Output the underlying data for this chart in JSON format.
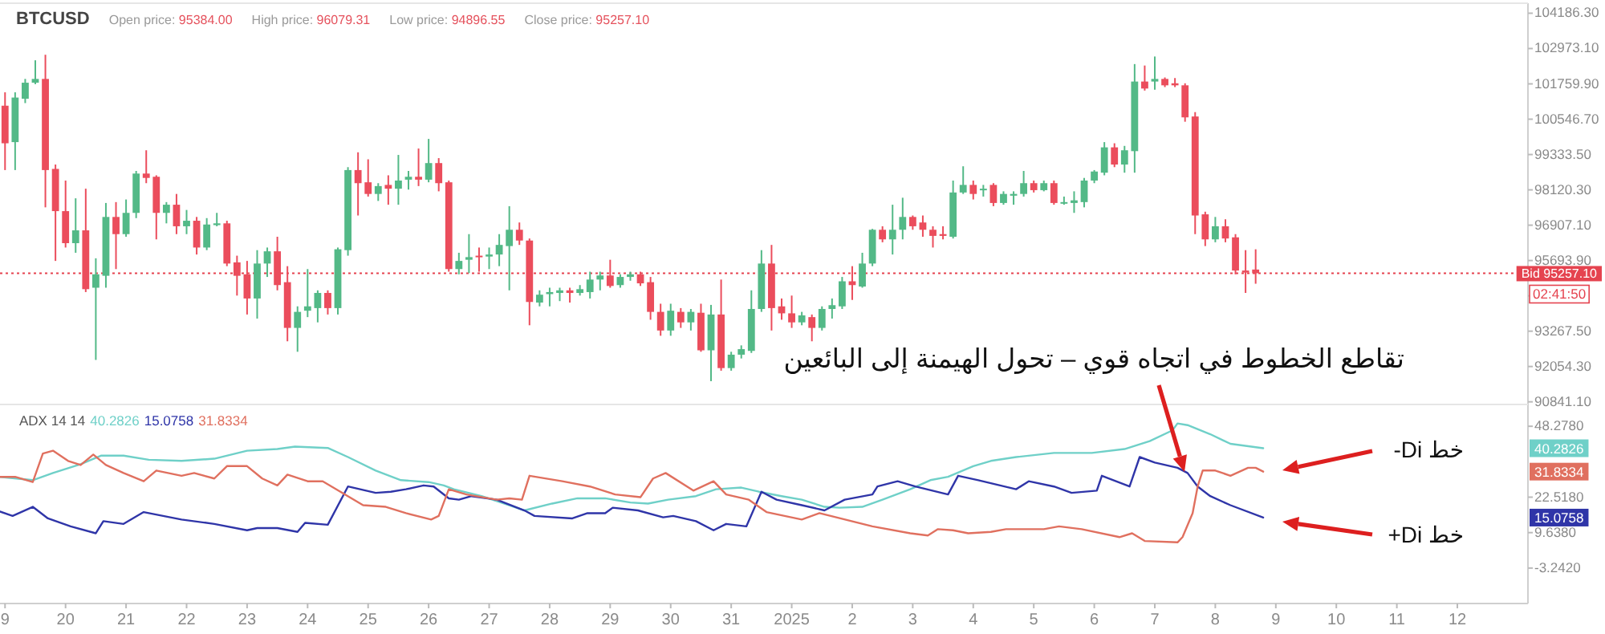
{
  "chart_data": [
    {
      "type": "candlestick",
      "title": "BTCUSD",
      "annotations": [
        "Open price: 95384.00",
        "High price: 96079.31",
        "Low price: 94896.55",
        "Close price: 95257.10",
        "02:41:50"
      ],
      "x": [
        "2024-12-19T00:00",
        "2024-12-19T04:00",
        "2024-12-19T08:00",
        "2024-12-19T12:00",
        "2024-12-19T16:00",
        "2024-12-19T20:00",
        "2024-12-20T00:00",
        "2024-12-20T04:00",
        "2024-12-20T08:00",
        "2024-12-20T12:00",
        "2024-12-20T16:00",
        "2024-12-20T20:00",
        "2024-12-21T00:00",
        "2024-12-21T04:00",
        "2024-12-21T08:00",
        "2024-12-21T12:00",
        "2024-12-21T16:00",
        "2024-12-21T20:00",
        "2024-12-22T00:00",
        "2024-12-22T04:00",
        "2024-12-22T08:00",
        "2024-12-22T12:00",
        "2024-12-22T16:00",
        "2024-12-22T20:00",
        "2024-12-23T00:00",
        "2024-12-23T04:00",
        "2024-12-23T08:00",
        "2024-12-23T12:00",
        "2024-12-23T16:00",
        "2024-12-23T20:00",
        "2024-12-24T00:00",
        "2024-12-24T04:00",
        "2024-12-24T08:00",
        "2024-12-24T12:00",
        "2024-12-24T16:00",
        "2024-12-24T20:00",
        "2024-12-25T00:00",
        "2024-12-25T04:00",
        "2024-12-25T08:00",
        "2024-12-25T12:00",
        "2024-12-25T16:00",
        "2024-12-25T20:00",
        "2024-12-26T00:00",
        "2024-12-26T04:00",
        "2024-12-26T08:00",
        "2024-12-26T12:00",
        "2024-12-26T16:00",
        "2024-12-26T20:00",
        "2024-12-27T00:00",
        "2024-12-27T04:00",
        "2024-12-27T08:00",
        "2024-12-27T12:00",
        "2024-12-27T16:00",
        "2024-12-27T20:00",
        "2024-12-28T00:00",
        "2024-12-28T04:00",
        "2024-12-28T08:00",
        "2024-12-28T12:00",
        "2024-12-28T16:00",
        "2024-12-28T20:00",
        "2024-12-29T00:00",
        "2024-12-29T04:00",
        "2024-12-29T08:00",
        "2024-12-29T12:00",
        "2024-12-29T16:00",
        "2024-12-29T20:00",
        "2024-12-30T00:00",
        "2024-12-30T04:00",
        "2024-12-30T08:00",
        "2024-12-30T12:00",
        "2024-12-30T16:00",
        "2024-12-30T20:00",
        "2024-12-31T00:00",
        "2024-12-31T04:00",
        "2024-12-31T08:00",
        "2024-12-31T12:00",
        "2024-12-31T16:00",
        "2024-12-31T20:00",
        "2025-01-01T00:00",
        "2025-01-01T04:00",
        "2025-01-01T08:00",
        "2025-01-01T12:00",
        "2025-01-01T16:00",
        "2025-01-01T20:00",
        "2025-01-02T00:00",
        "2025-01-02T04:00",
        "2025-01-02T08:00",
        "2025-01-02T12:00",
        "2025-01-02T16:00",
        "2025-01-02T20:00",
        "2025-01-03T00:00",
        "2025-01-03T04:00",
        "2025-01-03T08:00",
        "2025-01-03T12:00",
        "2025-01-03T16:00",
        "2025-01-03T20:00",
        "2025-01-04T00:00",
        "2025-01-04T04:00",
        "2025-01-04T08:00",
        "2025-01-04T12:00",
        "2025-01-04T16:00",
        "2025-01-04T20:00",
        "2025-01-05T00:00",
        "2025-01-05T04:00",
        "2025-01-05T08:00",
        "2025-01-05T12:00",
        "2025-01-05T16:00",
        "2025-01-05T20:00",
        "2025-01-06T00:00",
        "2025-01-06T04:00",
        "2025-01-06T08:00",
        "2025-01-06T12:00",
        "2025-01-06T16:00",
        "2025-01-06T20:00",
        "2025-01-07T00:00",
        "2025-01-07T04:00",
        "2025-01-07T08:00",
        "2025-01-07T12:00",
        "2025-01-07T16:00",
        "2025-01-07T20:00",
        "2025-01-08T00:00",
        "2025-01-08T04:00",
        "2025-01-08T08:00",
        "2025-01-08T12:00",
        "2025-01-08T16:00"
      ],
      "ohlc": [
        [
          101010,
          101470,
          98800,
          99720
        ],
        [
          99760,
          101470,
          98800,
          101290
        ],
        [
          101250,
          101930,
          101100,
          101800
        ],
        [
          101800,
          102570,
          101750,
          101930
        ],
        [
          101930,
          102760,
          97520,
          98800
        ],
        [
          98840,
          98990,
          95680,
          97390
        ],
        [
          97390,
          98440,
          96140,
          96290
        ],
        [
          96290,
          97830,
          95960,
          96730
        ],
        [
          96730,
          98160,
          94610,
          94710
        ],
        [
          94760,
          95770,
          92280,
          95220
        ],
        [
          95170,
          97670,
          94760,
          97190
        ],
        [
          97190,
          97700,
          95400,
          96600
        ],
        [
          96600,
          97790,
          96510,
          97330
        ],
        [
          97330,
          98770,
          97150,
          98680
        ],
        [
          98680,
          99480,
          98350,
          98530
        ],
        [
          98570,
          98620,
          96420,
          97330
        ],
        [
          97330,
          97700,
          96970,
          97610
        ],
        [
          97610,
          97980,
          96600,
          96870
        ],
        [
          96870,
          97430,
          96600,
          97060
        ],
        [
          97060,
          97190,
          95900,
          96140
        ],
        [
          96140,
          97150,
          96050,
          96930
        ],
        [
          96910,
          97330,
          96870,
          96970
        ],
        [
          96970,
          97060,
          95500,
          95590
        ],
        [
          95630,
          95860,
          94490,
          95170
        ],
        [
          95220,
          95680,
          93840,
          94390
        ],
        [
          94390,
          96050,
          93700,
          95590
        ],
        [
          95590,
          96140,
          95130,
          96010
        ],
        [
          96010,
          96510,
          94670,
          94850
        ],
        [
          94950,
          95500,
          92920,
          93380
        ],
        [
          93380,
          94120,
          92560,
          93930
        ],
        [
          93970,
          95400,
          93750,
          94120
        ],
        [
          94060,
          94670,
          93570,
          94580
        ],
        [
          94580,
          94670,
          93840,
          94060
        ],
        [
          94060,
          96140,
          93840,
          96080
        ],
        [
          96050,
          98900,
          95860,
          98800
        ],
        [
          98800,
          99410,
          97240,
          98350
        ],
        [
          98380,
          99170,
          97890,
          97980
        ],
        [
          97980,
          98350,
          97740,
          98250
        ],
        [
          98290,
          98620,
          97610,
          98160
        ],
        [
          98160,
          99320,
          97610,
          98440
        ],
        [
          98470,
          98770,
          98130,
          98570
        ],
        [
          98570,
          99540,
          98250,
          98470
        ],
        [
          98470,
          99870,
          98380,
          99040
        ],
        [
          99040,
          99210,
          98070,
          98350
        ],
        [
          98380,
          98440,
          95310,
          95400
        ],
        [
          95400,
          95960,
          95220,
          95680
        ],
        [
          95720,
          96600,
          95260,
          95810
        ],
        [
          95860,
          96140,
          95310,
          95810
        ],
        [
          95830,
          96140,
          95400,
          95900
        ],
        [
          95900,
          96600,
          95500,
          96230
        ],
        [
          96190,
          97560,
          94670,
          96750
        ],
        [
          96750,
          97000,
          96230,
          96380
        ],
        [
          96380,
          96450,
          93470,
          94270
        ],
        [
          94250,
          94670,
          94120,
          94520
        ],
        [
          94540,
          94760,
          94120,
          94610
        ],
        [
          94580,
          94760,
          94300,
          94670
        ],
        [
          94670,
          94760,
          94250,
          94580
        ],
        [
          94580,
          94850,
          94490,
          94710
        ],
        [
          94610,
          95310,
          94390,
          95040
        ],
        [
          95040,
          95310,
          94670,
          95180
        ],
        [
          95180,
          95720,
          94760,
          94820
        ],
        [
          94850,
          95220,
          94760,
          95130
        ],
        [
          95130,
          95310,
          95000,
          95220
        ],
        [
          95220,
          95310,
          94820,
          94910
        ],
        [
          94950,
          95130,
          93660,
          93930
        ],
        [
          93930,
          94210,
          93110,
          93290
        ],
        [
          93290,
          94210,
          93110,
          93970
        ],
        [
          93930,
          94060,
          93380,
          93570
        ],
        [
          93570,
          94030,
          93290,
          93930
        ],
        [
          93900,
          94210,
          92560,
          92610
        ],
        [
          92610,
          94170,
          91550,
          93840
        ],
        [
          93840,
          95040,
          91910,
          92000
        ],
        [
          92000,
          92560,
          91910,
          92460
        ],
        [
          92460,
          92780,
          92330,
          92650
        ],
        [
          92590,
          94670,
          92520,
          94030
        ],
        [
          94030,
          96050,
          93930,
          95590
        ],
        [
          95590,
          96230,
          93290,
          94060
        ],
        [
          94120,
          94390,
          93660,
          93880
        ],
        [
          93880,
          94490,
          93380,
          93570
        ],
        [
          93570,
          93930,
          93470,
          93810
        ],
        [
          93750,
          93840,
          92920,
          93380
        ],
        [
          93380,
          94120,
          93290,
          94030
        ],
        [
          94030,
          94390,
          93700,
          94160
        ],
        [
          94120,
          95130,
          94030,
          94980
        ],
        [
          94980,
          95500,
          94340,
          94850
        ],
        [
          94800,
          95960,
          94760,
          95590
        ],
        [
          95590,
          96780,
          95500,
          96750
        ],
        [
          96750,
          96870,
          96320,
          96420
        ],
        [
          96420,
          97610,
          95900,
          96750
        ],
        [
          96750,
          97850,
          96420,
          97190
        ],
        [
          97190,
          97240,
          96750,
          96870
        ],
        [
          97000,
          97240,
          96510,
          96750
        ],
        [
          96750,
          96870,
          96140,
          96540
        ],
        [
          96600,
          96870,
          96420,
          96540
        ],
        [
          96510,
          98440,
          96450,
          98030
        ],
        [
          98030,
          98930,
          97980,
          98290
        ],
        [
          98290,
          98440,
          97790,
          97980
        ],
        [
          98110,
          98290,
          97890,
          98160
        ],
        [
          98290,
          98350,
          97560,
          97670
        ],
        [
          97670,
          98070,
          97610,
          97980
        ],
        [
          97920,
          98070,
          97610,
          97980
        ],
        [
          97980,
          98770,
          97890,
          98350
        ],
        [
          98350,
          98440,
          98030,
          98110
        ],
        [
          98110,
          98440,
          98070,
          98350
        ],
        [
          98350,
          98440,
          97610,
          97670
        ],
        [
          97670,
          97890,
          97610,
          97700
        ],
        [
          97670,
          98070,
          97330,
          97760
        ],
        [
          97700,
          98530,
          97520,
          98440
        ],
        [
          98440,
          98800,
          98350,
          98750
        ],
        [
          98710,
          99760,
          98620,
          99580
        ],
        [
          99580,
          99720,
          98900,
          98990
        ],
        [
          98990,
          99630,
          98710,
          99480
        ],
        [
          99450,
          102440,
          98710,
          101840
        ],
        [
          101840,
          102390,
          101530,
          101600
        ],
        [
          101840,
          102700,
          101560,
          101930
        ],
        [
          101930,
          101980,
          101650,
          101710
        ],
        [
          101780,
          101960,
          101650,
          101710
        ],
        [
          101710,
          101780,
          100460,
          100610
        ],
        [
          100640,
          100790,
          96600,
          97240
        ],
        [
          97280,
          97370,
          96190,
          96420
        ],
        [
          96420,
          97190,
          96320,
          96870
        ],
        [
          96870,
          97110,
          96320,
          96450
        ],
        [
          96490,
          96600,
          95220,
          95350
        ],
        [
          95350,
          96050,
          94580,
          95280
        ],
        [
          95384,
          96079.31,
          94896.55,
          95257.1
        ]
      ],
      "colors": [
        "#eb4d5c",
        "#53b987",
        "#53b987",
        "#53b987",
        "#eb4d5c",
        "#eb4d5c",
        "#eb4d5c",
        "#53b987",
        "#eb4d5c",
        "#53b987",
        "#53b987",
        "#eb4d5c",
        "#53b987",
        "#53b987",
        "#eb4d5c",
        "#eb4d5c",
        "#53b987",
        "#eb4d5c",
        "#53b987",
        "#eb4d5c",
        "#53b987",
        "#53b987",
        "#eb4d5c",
        "#eb4d5c",
        "#eb4d5c",
        "#53b987",
        "#53b987",
        "#eb4d5c",
        "#eb4d5c",
        "#53b987",
        "#53b987",
        "#53b987",
        "#eb4d5c",
        "#53b987",
        "#53b987",
        "#eb4d5c",
        "#eb4d5c",
        "#53b987",
        "#eb4d5c",
        "#53b987",
        "#53b987",
        "#eb4d5c",
        "#53b987",
        "#eb4d5c",
        "#eb4d5c",
        "#53b987",
        "#53b987",
        "#eb4d5c",
        "#53b987",
        "#53b987",
        "#53b987",
        "#eb4d5c",
        "#eb4d5c",
        "#53b987",
        "#53b987",
        "#53b987",
        "#eb4d5c",
        "#53b987",
        "#53b987",
        "#53b987",
        "#eb4d5c",
        "#53b987",
        "#53b987",
        "#eb4d5c",
        "#eb4d5c",
        "#eb4d5c",
        "#53b987",
        "#eb4d5c",
        "#53b987",
        "#eb4d5c",
        "#53b987",
        "#eb4d5c",
        "#53b987",
        "#53b987",
        "#53b987",
        "#53b987",
        "#eb4d5c",
        "#eb4d5c",
        "#eb4d5c",
        "#53b987",
        "#eb4d5c",
        "#53b987",
        "#53b987",
        "#53b987",
        "#eb4d5c",
        "#53b987",
        "#53b987",
        "#eb4d5c",
        "#53b987",
        "#53b987",
        "#eb4d5c",
        "#eb4d5c",
        "#eb4d5c",
        "#eb4d5c",
        "#53b987",
        "#53b987",
        "#eb4d5c",
        "#53b987",
        "#eb4d5c",
        "#53b987",
        "#53b987",
        "#53b987",
        "#eb4d5c",
        "#53b987",
        "#eb4d5c",
        "#53b987",
        "#53b987",
        "#53b987",
        "#53b987",
        "#53b987",
        "#eb4d5c",
        "#53b987",
        "#53b987",
        "#eb4d5c",
        "#53b987",
        "#eb4d5c",
        "#eb4d5c",
        "#eb4d5c",
        "#eb4d5c",
        "#eb4d5c",
        "#53b987",
        "#eb4d5c",
        "#eb4d5c",
        "#eb4d5c",
        "#eb4d5c"
      ],
      "xlim": [
        "2024-12-18T22:00",
        "2025-01-13T04:00"
      ],
      "ylim": [
        90750,
        104530
      ],
      "yticks": [
        {
          "value": 104186.3,
          "label": "104186.30"
        },
        {
          "value": 102973.1,
          "label": "102973.10"
        },
        {
          "value": 101759.9,
          "label": "101759.90"
        },
        {
          "value": 100546.7,
          "label": "100546.70"
        },
        {
          "value": 99333.5,
          "label": "99333.50"
        },
        {
          "value": 98120.3,
          "label": "98120.30"
        },
        {
          "value": 96907.1,
          "label": "96907.10"
        },
        {
          "value": 95693.9,
          "label": "95693.90"
        },
        {
          "value": 94480.7,
          "label": null
        },
        {
          "value": 93267.5,
          "label": "93267.50"
        },
        {
          "value": 92054.3,
          "label": "92054.30"
        },
        {
          "value": 90841.1,
          "label": "90841.10"
        }
      ],
      "ref_lines": [
        {
          "axis": "y",
          "value": 95257.1,
          "label": "Bid 95257.10",
          "color": "#e5434f",
          "line_style": "dotted"
        }
      ],
      "tick_labels": "y"
    },
    {
      "type": "line",
      "title": "ADX 14 14",
      "xlim": [
        "2024-12-18T22:00",
        "2025-01-13T04:00"
      ],
      "ylim": [
        -16.12,
        56.2
      ],
      "xticks": [
        {
          "value": "2024-12-19",
          "label": "9"
        },
        {
          "value": "2024-12-20",
          "label": "20"
        },
        {
          "value": "2024-12-21",
          "label": "21"
        },
        {
          "value": "2024-12-22",
          "label": "22"
        },
        {
          "value": "2024-12-23",
          "label": "23"
        },
        {
          "value": "2024-12-24",
          "label": "24"
        },
        {
          "value": "2024-12-25",
          "label": "25"
        },
        {
          "value": "2024-12-26",
          "label": "26"
        },
        {
          "value": "2024-12-27",
          "label": "27"
        },
        {
          "value": "2024-12-28",
          "label": "28"
        },
        {
          "value": "2024-12-29",
          "label": "29"
        },
        {
          "value": "2024-12-30",
          "label": "30"
        },
        {
          "value": "2024-12-31",
          "label": "31"
        },
        {
          "value": "2025-01-01",
          "label": "2025"
        },
        {
          "value": "2025-01-02",
          "label": "2"
        },
        {
          "value": "2025-01-03",
          "label": "3"
        },
        {
          "value": "2025-01-04",
          "label": "4"
        },
        {
          "value": "2025-01-05",
          "label": "5"
        },
        {
          "value": "2025-01-06",
          "label": "6"
        },
        {
          "value": "2025-01-07",
          "label": "7"
        },
        {
          "value": "2025-01-08",
          "label": "8"
        },
        {
          "value": "2025-01-09",
          "label": "9"
        },
        {
          "value": "2025-01-10",
          "label": "10"
        },
        {
          "value": "2025-01-11",
          "label": "11"
        },
        {
          "value": "2025-01-12",
          "label": "12"
        }
      ],
      "yticks": [
        {
          "value": 48.278,
          "label": "48.2780"
        },
        {
          "value": 22.518,
          "label": "22.5180"
        },
        {
          "value": 9.638,
          "label": "9.6380"
        },
        {
          "value": -3.242,
          "label": "-3.2420"
        }
      ],
      "series": [
        {
          "color": "#6fd0c8",
          "x": [
            "2024-12-18T22:00",
            "2024-12-19T11:00",
            "2024-12-19T19:00",
            "2024-12-20T06:00",
            "2024-12-20T14:00",
            "2024-12-20T23:00",
            "2024-12-21T09:00",
            "2024-12-21T22:00",
            "2024-12-22T11:00",
            "2024-12-23T00:00",
            "2024-12-23T12:00",
            "2024-12-23T19:00",
            "2024-12-24T08:00",
            "2024-12-24T16:00",
            "2024-12-25T03:00",
            "2024-12-25T13:00",
            "2024-12-26T00:00",
            "2024-12-26T06:00",
            "2024-12-26T10:00",
            "2024-12-26T21:00",
            "2024-12-27T08:00",
            "2024-12-27T14:00",
            "2024-12-28T01:00",
            "2024-12-28T11:00",
            "2024-12-28T22:00",
            "2024-12-29T08:00",
            "2024-12-29T15:00",
            "2024-12-29T23:00",
            "2024-12-30T10:00",
            "2024-12-30T18:00",
            "2024-12-31T04:00",
            "2024-12-31T11:00",
            "2024-12-31T20:00",
            "2025-01-01T04:00",
            "2025-01-01T13:00",
            "2025-01-01T19:00",
            "2025-01-02T04:00",
            "2025-01-02T12:00",
            "2025-01-02T23:00",
            "2025-01-03T07:00",
            "2025-01-03T14:00",
            "2025-01-04T00:00",
            "2025-01-04T07:00",
            "2025-01-04T17:00",
            "2025-01-05T08:00",
            "2025-01-05T23:00",
            "2025-01-06T12:00",
            "2025-01-06T22:00",
            "2025-01-07T07:00",
            "2025-01-07T09:00",
            "2025-01-07T13:00",
            "2025-01-07T22:00",
            "2025-01-08T06:00",
            "2025-01-08T19:00"
          ],
          "values": [
            29.9,
            28.7,
            31.3,
            34.5,
            37.6,
            37.6,
            36.1,
            35.7,
            36.5,
            39.4,
            40.0,
            40.9,
            40.4,
            37.1,
            32.2,
            28.7,
            28.0,
            26.8,
            25.4,
            22.9,
            19.6,
            17.7,
            20.2,
            22.1,
            22.1,
            20.6,
            20.2,
            21.6,
            22.9,
            25.4,
            26.0,
            24.5,
            22.9,
            21.6,
            19.0,
            18.7,
            19.0,
            21.6,
            25.4,
            28.7,
            29.9,
            33.8,
            35.7,
            37.1,
            38.6,
            38.6,
            40.0,
            42.9,
            46.8,
            49.3,
            48.7,
            45.4,
            41.9,
            40.3
          ]
        },
        {
          "color": "#2f35a8",
          "x": [
            "2024-12-18T22:00",
            "2024-12-19T03:00",
            "2024-12-19T11:00",
            "2024-12-19T17:00",
            "2024-12-20T02:00",
            "2024-12-20T12:00",
            "2024-12-20T15:00",
            "2024-12-20T23:00",
            "2024-12-21T07:00",
            "2024-12-21T22:00",
            "2024-12-22T11:00",
            "2024-12-23T00:00",
            "2024-12-23T04:00",
            "2024-12-23T12:00",
            "2024-12-23T20:00",
            "2024-12-23T23:00",
            "2024-12-24T08:00",
            "2024-12-24T16:00",
            "2024-12-25T03:00",
            "2024-12-25T09:00",
            "2024-12-25T15:00",
            "2024-12-25T22:00",
            "2024-12-26T02:00",
            "2024-12-26T08:00",
            "2024-12-26T12:00",
            "2024-12-26T17:00",
            "2024-12-27T03:00",
            "2024-12-27T14:00",
            "2024-12-27T18:00",
            "2024-12-28T09:00",
            "2024-12-28T15:00",
            "2024-12-28T22:00",
            "2024-12-29T01:00",
            "2024-12-29T11:00",
            "2024-12-29T21:00",
            "2024-12-30T01:00",
            "2024-12-30T10:00",
            "2024-12-30T17:00",
            "2024-12-30T22:00",
            "2024-12-31T06:00",
            "2024-12-31T12:00",
            "2024-12-31T18:00",
            "2025-01-01T04:00",
            "2025-01-01T13:00",
            "2025-01-01T21:00",
            "2025-01-02T08:00",
            "2025-01-02T10:00",
            "2025-01-02T18:00",
            "2025-01-03T01:00",
            "2025-01-03T14:00",
            "2025-01-03T18:00",
            "2025-01-04T02:00",
            "2025-01-04T17:00",
            "2025-01-04T22:00",
            "2025-01-05T08:00",
            "2025-01-05T15:00",
            "2025-01-06T01:00",
            "2025-01-06T03:00",
            "2025-01-06T14:00",
            "2025-01-06T18:00",
            "2025-01-07T00:00",
            "2025-01-07T09:00",
            "2025-01-07T13:00",
            "2025-01-07T17:00",
            "2025-01-07T22:00",
            "2025-01-08T06:00",
            "2025-01-08T19:00"
          ],
          "values": [
            17.3,
            15.7,
            19.0,
            14.8,
            11.9,
            9.4,
            13.8,
            12.8,
            17.1,
            14.4,
            12.8,
            10.5,
            11.3,
            11.3,
            9.9,
            13.2,
            12.5,
            26.4,
            24.1,
            24.5,
            25.4,
            26.8,
            26.4,
            22.1,
            21.6,
            22.9,
            21.6,
            17.7,
            15.7,
            14.8,
            16.7,
            16.7,
            18.7,
            17.7,
            15.2,
            15.7,
            13.8,
            10.5,
            12.8,
            11.9,
            24.5,
            21.6,
            19.6,
            17.7,
            21.6,
            23.5,
            26.4,
            28.3,
            26.4,
            23.5,
            30.3,
            28.7,
            25.4,
            28.3,
            26.4,
            24.1,
            24.9,
            30.3,
            26.4,
            37.1,
            35.1,
            33.2,
            31.3,
            26.4,
            22.9,
            19.6,
            15.1
          ]
        },
        {
          "color": "#e0705f",
          "x": [
            "2024-12-18T22:00",
            "2024-12-19T04:00",
            "2024-12-19T11:00",
            "2024-12-19T15:00",
            "2024-12-19T19:00",
            "2024-12-20T01:00",
            "2024-12-20T06:00",
            "2024-12-20T11:00",
            "2024-12-20T16:00",
            "2024-12-20T23:00",
            "2024-12-21T07:00",
            "2024-12-21T12:00",
            "2024-12-21T22:00",
            "2024-12-22T03:00",
            "2024-12-22T11:00",
            "2024-12-22T16:00",
            "2024-12-23T00:00",
            "2024-12-23T06:00",
            "2024-12-23T12:00",
            "2024-12-23T16:00",
            "2024-12-24T00:00",
            "2024-12-24T06:00",
            "2024-12-24T13:00",
            "2024-12-24T22:00",
            "2024-12-25T07:00",
            "2024-12-25T15:00",
            "2024-12-26T01:00",
            "2024-12-26T04:00",
            "2024-12-26T08:00",
            "2024-12-26T15:00",
            "2024-12-27T03:00",
            "2024-12-27T08:00",
            "2024-12-27T13:00",
            "2024-12-27T16:00",
            "2024-12-28T05:00",
            "2024-12-28T16:00",
            "2024-12-29T02:00",
            "2024-12-29T12:00",
            "2024-12-29T17:00",
            "2024-12-29T22:00",
            "2024-12-30T09:00",
            "2024-12-30T17:00",
            "2024-12-30T22:00",
            "2024-12-31T07:00",
            "2024-12-31T14:00",
            "2025-01-01T04:00",
            "2025-01-01T11:00",
            "2025-01-02T08:00",
            "2025-01-02T23:00",
            "2025-01-03T06:00",
            "2025-01-03T10:00",
            "2025-01-03T16:00",
            "2025-01-03T22:00",
            "2025-01-04T07:00",
            "2025-01-04T13:00",
            "2025-01-05T04:00",
            "2025-01-05T10:00",
            "2025-01-05T19:00",
            "2025-01-06T10:00",
            "2025-01-06T15:00",
            "2025-01-06T20:00",
            "2025-01-07T09:00",
            "2025-01-07T11:00",
            "2025-01-07T15:00",
            "2025-01-07T17:00",
            "2025-01-07T19:00",
            "2025-01-08T00:00",
            "2025-01-08T06:00",
            "2025-01-08T13:00",
            "2025-01-08T16:00",
            "2025-01-08T19:00"
          ],
          "values": [
            29.9,
            29.9,
            28.0,
            38.4,
            39.4,
            35.7,
            34.2,
            38.0,
            34.2,
            31.3,
            28.3,
            32.2,
            30.3,
            31.3,
            29.3,
            33.8,
            33.8,
            29.3,
            26.8,
            30.7,
            28.3,
            28.3,
            24.5,
            19.6,
            19.0,
            16.7,
            14.4,
            15.7,
            25.4,
            23.5,
            21.6,
            22.1,
            21.6,
            30.3,
            28.3,
            26.4,
            23.5,
            22.5,
            29.3,
            31.3,
            24.9,
            28.3,
            23.5,
            21.6,
            17.1,
            14.4,
            16.7,
            11.9,
            9.4,
            8.6,
            10.9,
            10.5,
            9.4,
            9.9,
            10.9,
            10.9,
            11.9,
            10.9,
            8.0,
            9.4,
            6.6,
            6.1,
            8.0,
            16.7,
            26.4,
            32.2,
            32.2,
            30.3,
            33.2,
            33.2,
            31.8
          ]
        }
      ],
      "annotations": [
        "تقاطع الخطوط في اتجاه قوي – تحول الهيمنة إلى البائعين",
        "-Di خط",
        "+Di خط",
        "40.2826",
        "15.0758",
        "31.8334"
      ]
    }
  ]
}
